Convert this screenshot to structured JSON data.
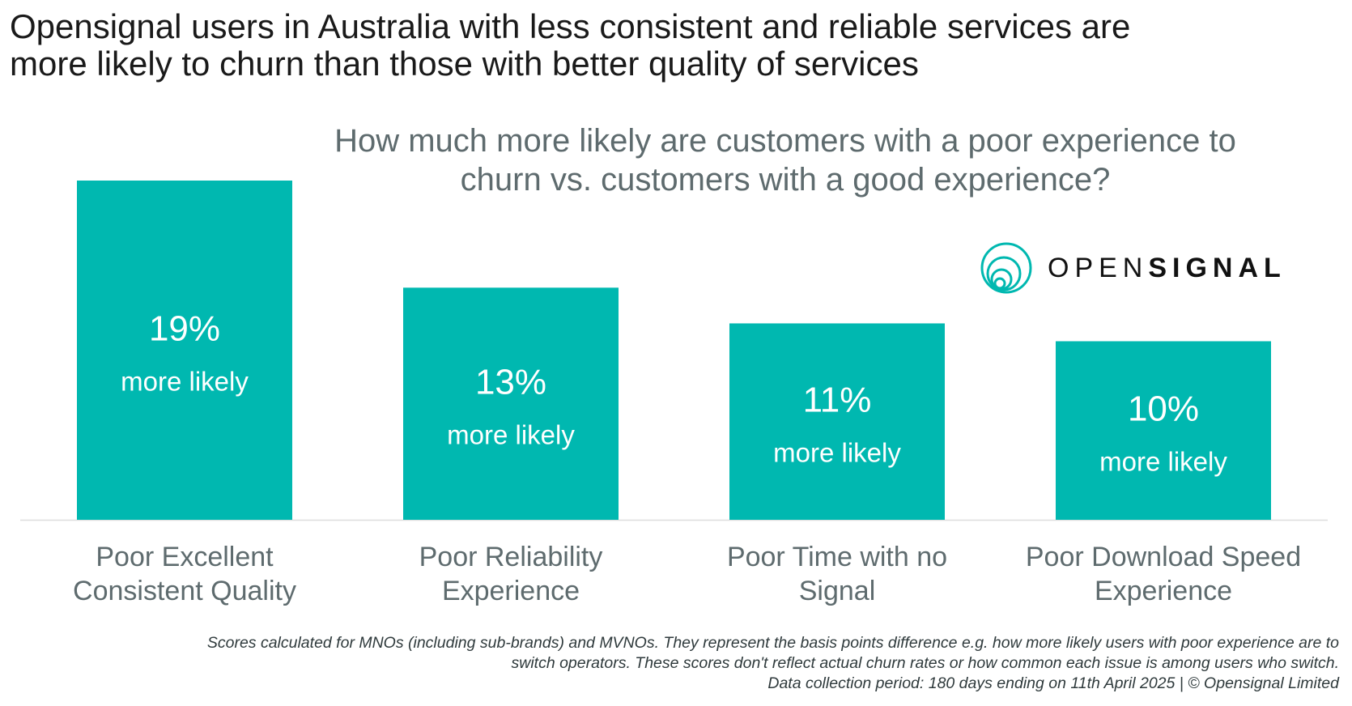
{
  "headline": {
    "line1": "Opensignal users in Australia with less consistent and reliable services are",
    "line2": "more likely to churn than those with better quality of services"
  },
  "logo": {
    "prefix": "OPEN",
    "suffix": "SIGNAL",
    "icon": "concentric-circles-logo-icon"
  },
  "colors": {
    "bar": "#00b8b0",
    "bar_text": "#ffffff",
    "axis_label": "#5e6b6e",
    "baseline": "#dddddd"
  },
  "chart_data": {
    "type": "bar",
    "title": "How much more likely are customers with a poor experience to churn vs. customers with a good experience?",
    "title_lines": [
      "How much more likely are customers with a poor experience to",
      "churn vs. customers with a good experience?"
    ],
    "categories": [
      "Poor Excellent Consistent Quality",
      "Poor Reliability Experience",
      "Poor Time with no Signal",
      "Poor Download Speed Experience"
    ],
    "category_lines": [
      [
        "Poor Excellent",
        "Consistent Quality"
      ],
      [
        "Poor Reliability",
        "Experience"
      ],
      [
        "Poor Time with no",
        "Signal"
      ],
      [
        "Poor Download Speed",
        "Experience"
      ]
    ],
    "values": [
      19,
      13,
      11,
      10
    ],
    "value_labels": [
      "19%",
      "13%",
      "11%",
      "10%"
    ],
    "value_suffix": "more likely",
    "xlabel": "",
    "ylabel": "",
    "ylim": [
      0,
      19
    ],
    "grid": false,
    "legend": "none"
  },
  "footnote": {
    "line1": "Scores calculated for MNOs (including sub-brands) and MVNOs. They represent the basis points difference e.g. how more likely users with poor experience are to",
    "line2": "switch  operators. These scores don't reflect actual churn rates or how common each issue is among users who switch.",
    "line3": "Data collection period: 180 days ending on 11th April 2025 |  © Opensignal Limited"
  }
}
